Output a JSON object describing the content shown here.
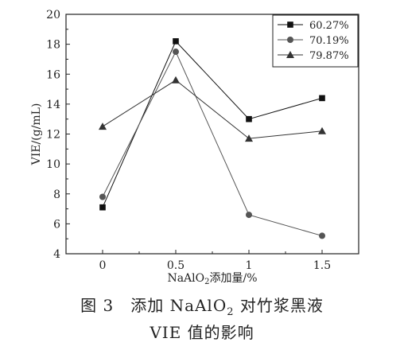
{
  "chart_data": {
    "type": "line",
    "x": [
      0,
      0.5,
      1,
      1.5
    ],
    "x_tick_labels": [
      "0",
      "0.5",
      "1",
      "1.5"
    ],
    "xlim": [
      -0.25,
      1.75
    ],
    "ylim": [
      4,
      20
    ],
    "y_ticks": [
      4,
      6,
      8,
      10,
      12,
      14,
      16,
      18,
      20
    ],
    "xlabel_main": "NaAlO",
    "xlabel_sub": "2",
    "xlabel_rest": "添加量/%",
    "ylabel": "VIE/(g/mL)",
    "legend_position": "top-right",
    "grid": false,
    "series": [
      {
        "name": "60.27%",
        "marker": "square",
        "color": "#111111",
        "values": [
          7.1,
          18.2,
          13.0,
          14.4
        ]
      },
      {
        "name": "70.19%",
        "marker": "circle",
        "color": "#555555",
        "values": [
          7.8,
          17.5,
          6.6,
          5.2
        ]
      },
      {
        "name": "79.87%",
        "marker": "triangle",
        "color": "#333333",
        "values": [
          12.5,
          15.6,
          11.7,
          12.2
        ]
      }
    ]
  },
  "caption": {
    "line1_prefix": "图 3　添加 NaAlO",
    "line1_sub": "2",
    "line1_suffix": " 对竹浆黑液",
    "line2": "VIE 值的影响"
  }
}
